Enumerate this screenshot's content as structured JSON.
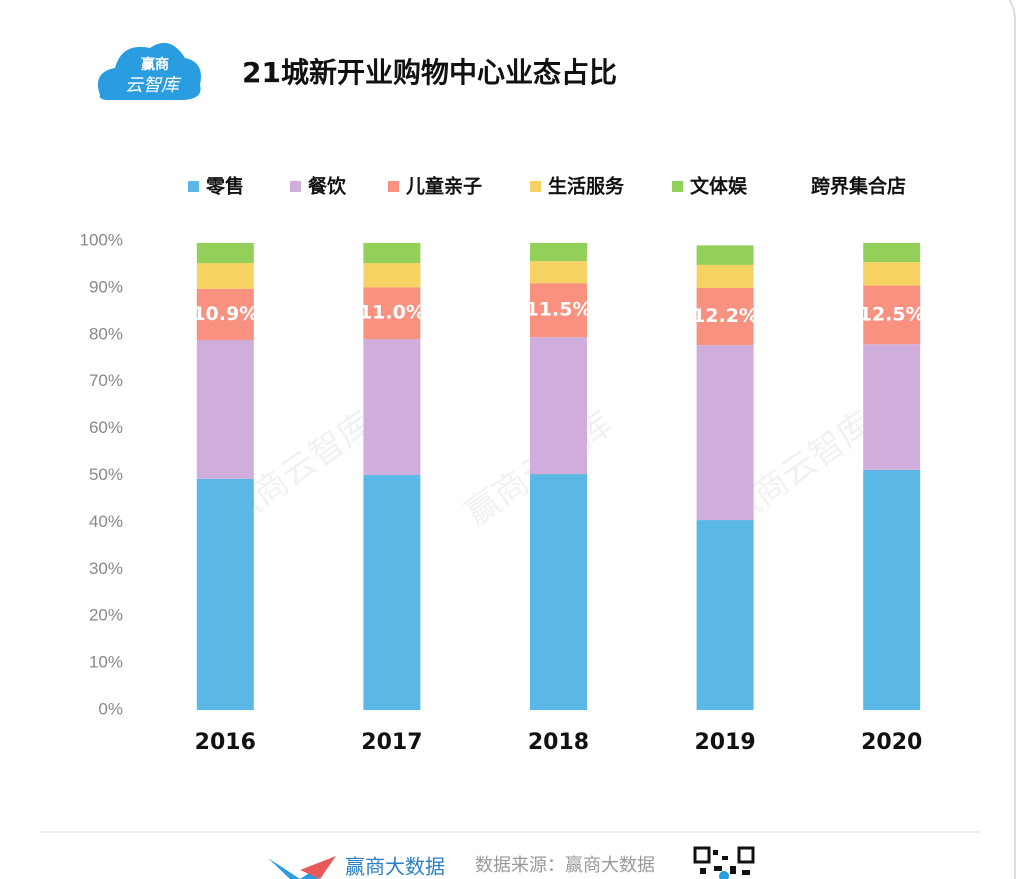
{
  "logo": {
    "line1": "赢商",
    "line2": "云智库"
  },
  "watermark": "赢商云智库",
  "footer": {
    "brand": "赢商大数据",
    "source": "数据来源：赢商大数据"
  },
  "chart_data": {
    "type": "stacked-bar",
    "title": "21城新开业购物中心业态占比",
    "categories": [
      "2016",
      "2017",
      "2018",
      "2019",
      "2020"
    ],
    "series": [
      {
        "name": "零售",
        "color": "#5bb8e6",
        "values": [
          49.3,
          50.1,
          50.3,
          40.5,
          51.2
        ]
      },
      {
        "name": "餐饮",
        "color": "#cfaedb",
        "values": [
          29.6,
          29.0,
          29.2,
          37.3,
          26.8
        ]
      },
      {
        "name": "儿童亲子",
        "color": "#f99181",
        "values": [
          10.9,
          11.0,
          11.5,
          12.2,
          12.5
        ],
        "value_labels": [
          "10.9%",
          "11.0%",
          "11.5%",
          "12.2%",
          "12.5%"
        ]
      },
      {
        "name": "生活服务",
        "color": "#f5d262",
        "values": [
          5.5,
          5.2,
          4.7,
          4.9,
          5.0
        ]
      },
      {
        "name": "文体娱",
        "color": "#93d05a",
        "values": [
          4.3,
          4.3,
          3.9,
          4.2,
          4.1
        ]
      },
      {
        "name": "跨界集合店",
        "color": "#ffffff",
        "values": [
          0.4,
          0.4,
          0.4,
          0.9,
          0.4
        ]
      }
    ],
    "ylim": [
      0,
      100
    ],
    "yticks": [
      {
        "value": 0,
        "label": "0%"
      },
      {
        "value": 10,
        "label": "10%"
      },
      {
        "value": 20,
        "label": "20%"
      },
      {
        "value": 30,
        "label": "30%"
      },
      {
        "value": 40,
        "label": "40%"
      },
      {
        "value": 50,
        "label": "50%"
      },
      {
        "value": 60,
        "label": "60%"
      },
      {
        "value": 70,
        "label": "70%"
      },
      {
        "value": 80,
        "label": "80%"
      },
      {
        "value": 90,
        "label": "90%"
      },
      {
        "value": 100,
        "label": "100%"
      }
    ],
    "grid": false,
    "legend": "top"
  }
}
